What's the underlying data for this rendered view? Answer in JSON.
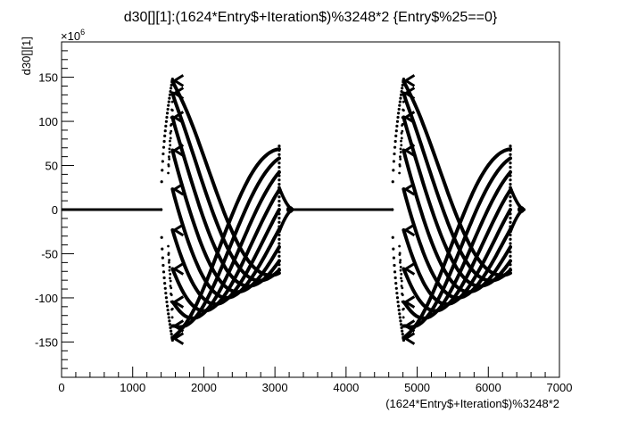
{
  "chart_data": {
    "type": "scatter",
    "title": "d30[][1]:(1624*Entry$+Iteration$)%3248*2 {Entry$%25==0}",
    "xlabel": "(1624*Entry$+Iteration$)%3248*2",
    "ylabel": "d30[][1]",
    "y_exponent_label": "×10",
    "y_exponent_power": "6",
    "xlim": [
      0,
      7000
    ],
    "ylim": [
      -190,
      190
    ],
    "y_scale_note": "values in units of 1e6",
    "x_ticks": [
      0,
      1000,
      2000,
      3000,
      4000,
      5000,
      6000,
      7000
    ],
    "x_tick_labels": [
      "0",
      "1000",
      "2000",
      "3000",
      "4000",
      "5000",
      "6000",
      "7000"
    ],
    "y_ticks": [
      -150,
      -100,
      -50,
      0,
      50,
      100,
      150
    ],
    "y_tick_labels": [
      "-150",
      "-100",
      "-50",
      "0",
      "50",
      "100",
      "150"
    ],
    "grid": false,
    "legend": "none",
    "marker_color": "#000000",
    "series": [
      {
        "flat_segments": [
          {
            "x": [
              0,
              1400
            ],
            "y": 0
          },
          {
            "x": [
              3250,
              4650
            ],
            "y": 0
          }
        ],
        "oscillation_blocks": [
          {
            "x_start": 1400,
            "x_peak": 1560,
            "x_end": 3060,
            "x_tail_end": 3250,
            "peak_amplitude": 148,
            "end_amplitude": 72,
            "num_curves": 10
          },
          {
            "x_start": 4650,
            "x_peak": 4810,
            "x_end": 6310,
            "x_tail_end": 6500,
            "peak_amplitude": 148,
            "end_amplitude": 72,
            "num_curves": 10
          }
        ]
      }
    ]
  }
}
